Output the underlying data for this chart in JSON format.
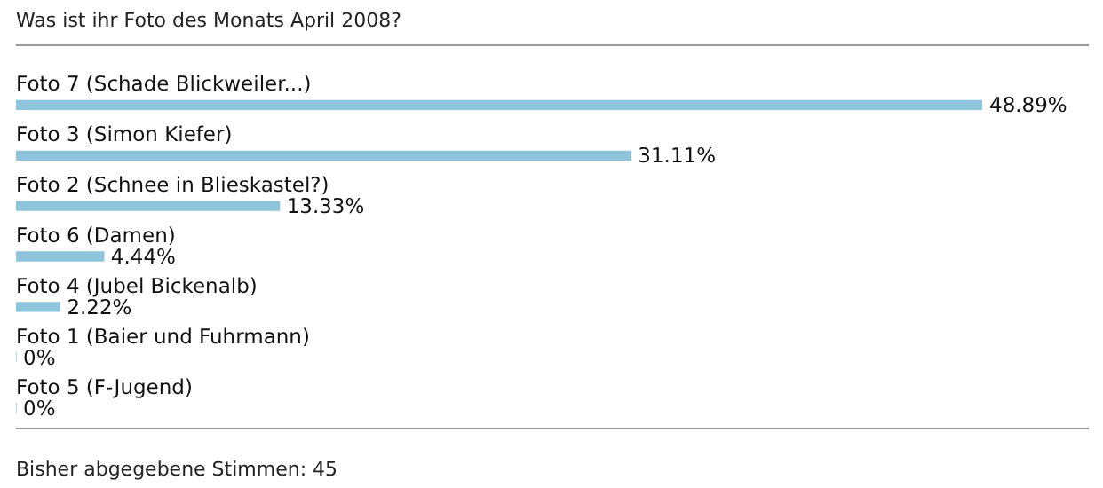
{
  "chart_data": {
    "type": "bar",
    "orientation": "horizontal",
    "title": "Was ist ihr Foto des Monats April 2008?",
    "categories": [
      "Foto 7 (Schade Blickweiler...)",
      "Foto 3 (Simon Kiefer)",
      "Foto 2 (Schnee in Blieskastel?)",
      "Foto 6 (Damen)",
      "Foto 4 (Jubel Bickenalb)",
      "Foto 1 (Baier und Fuhrmann)",
      "Foto 5 (F-Jugend)"
    ],
    "values": [
      48.89,
      31.11,
      13.33,
      4.44,
      2.22,
      0,
      0
    ],
    "value_labels": [
      "48.89%",
      "31.11%",
      "13.33%",
      "4.44%",
      "2.22%",
      "0%",
      "0%"
    ],
    "color": "#8fc4dd",
    "legend": false,
    "annotations": [
      "Bisher abgegebene Stimmen: 45"
    ]
  }
}
